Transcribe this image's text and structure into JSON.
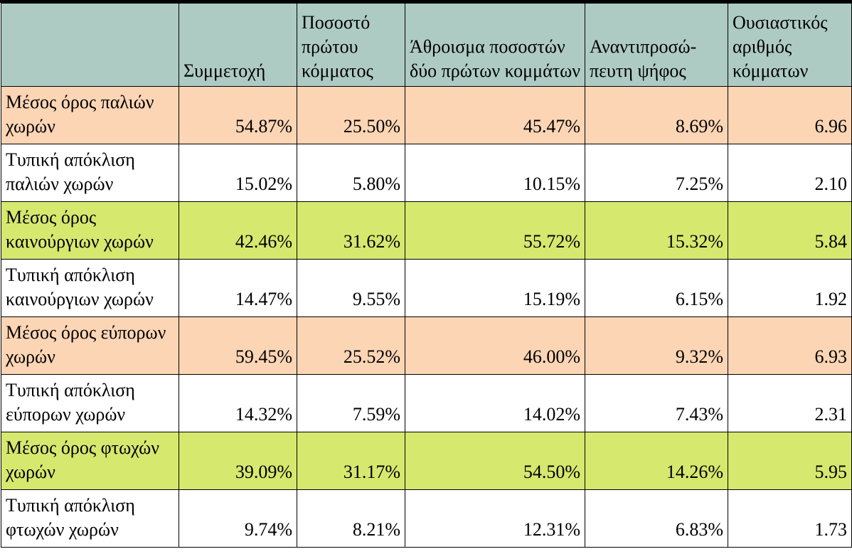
{
  "table": {
    "headers": [
      "",
      "Συμμετοχή",
      "Ποσοστό πρώτου κόμματος",
      "Άθροισμα ποσοστών δύο πρώτων κομμάτων",
      "Αναντιπροσώ-πευτη ψήφος",
      "Ουσιαστικός αριθμός κόμματων"
    ],
    "colors": {
      "header": "#aecbc3",
      "orange": "#fcd5b5",
      "green": "#d7e86f",
      "white": "#ffffff"
    },
    "rows": [
      {
        "style": "orange",
        "cells": [
          "Μέσος όρος παλιών χωρών",
          "54.87%",
          "25.50%",
          "45.47%",
          "8.69%",
          "6.96"
        ]
      },
      {
        "style": "white",
        "cells": [
          "Τυπική απόκλιση παλιών χωρών",
          "15.02%",
          "5.80%",
          "10.15%",
          "7.25%",
          "2.10"
        ]
      },
      {
        "style": "green",
        "cells": [
          "Μέσος όρος καινούργιων χωρών",
          "42.46%",
          "31.62%",
          "55.72%",
          "15.32%",
          "5.84"
        ]
      },
      {
        "style": "white",
        "cells": [
          "Τυπική απόκλιση καινούργιων χωρών",
          "14.47%",
          "9.55%",
          "15.19%",
          "6.15%",
          "1.92"
        ]
      },
      {
        "style": "orange",
        "cells": [
          "Μέσος όρος εύπορων χωρών",
          "59.45%",
          "25.52%",
          "46.00%",
          "9.32%",
          "6.93"
        ]
      },
      {
        "style": "white",
        "cells": [
          "Τυπική απόκλιση εύπορων χωρών",
          "14.32%",
          "7.59%",
          "14.02%",
          "7.43%",
          "2.31"
        ]
      },
      {
        "style": "green",
        "cells": [
          "Μέσος όρος φτωχών χωρών",
          "39.09%",
          "31.17%",
          "54.50%",
          "14.26%",
          "5.95"
        ]
      },
      {
        "style": "white",
        "cells": [
          "Τυπική απόκλιση φτωχών χωρών",
          "9.74%",
          "8.21%",
          "12.31%",
          "6.83%",
          "1.73"
        ]
      }
    ]
  }
}
